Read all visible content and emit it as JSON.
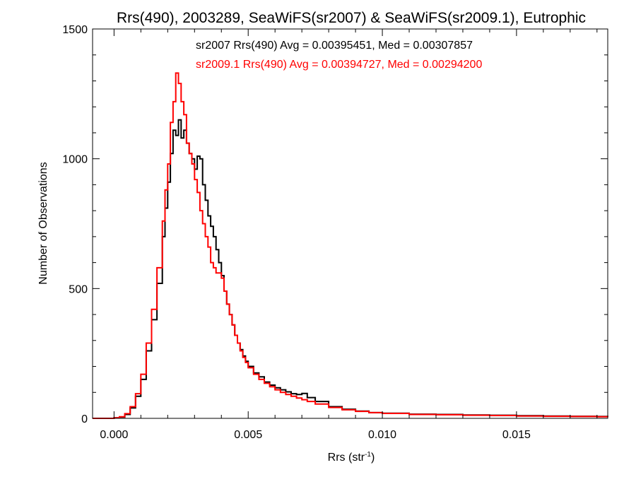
{
  "chart_data": {
    "type": "line",
    "step": true,
    "title": "Rrs(490), 2003289, SeaWiFS(sr2007) & SeaWiFS(sr2009.1), Eutrophic",
    "xlabel": "Rrs (str",
    "xlabel_sup": "-1",
    "xlabel_close": ")",
    "ylabel": "Number of Observations",
    "xlim": [
      -0.0008,
      0.0184
    ],
    "ylim": [
      0,
      1500
    ],
    "xticks": [
      0.0,
      0.005,
      0.01,
      0.015
    ],
    "xtick_labels": [
      "0.000",
      "0.005",
      "0.010",
      "0.015"
    ],
    "yticks": [
      0,
      500,
      1000,
      1500
    ],
    "ytick_labels": [
      "0",
      "500",
      "1000",
      "1500"
    ],
    "grid": false,
    "legend_position": "top",
    "series": [
      {
        "name": "sr2007 Rrs(490) Avg = 0.00395451, Med = 0.00307857",
        "color": "#000000",
        "points": [
          [
            -0.0008,
            0
          ],
          [
            -0.0002,
            0
          ],
          [
            0.0,
            2
          ],
          [
            0.0002,
            5
          ],
          [
            0.0004,
            15
          ],
          [
            0.0006,
            40
          ],
          [
            0.0008,
            85
          ],
          [
            0.001,
            150
          ],
          [
            0.0012,
            260
          ],
          [
            0.0014,
            380
          ],
          [
            0.0016,
            520
          ],
          [
            0.0018,
            700
          ],
          [
            0.0019,
            810
          ],
          [
            0.002,
            910
          ],
          [
            0.0021,
            1020
          ],
          [
            0.0022,
            1110
          ],
          [
            0.0023,
            1090
          ],
          [
            0.0024,
            1150
          ],
          [
            0.0025,
            1080
          ],
          [
            0.0026,
            1110
          ],
          [
            0.0027,
            1060
          ],
          [
            0.0028,
            1020
          ],
          [
            0.0029,
            1000
          ],
          [
            0.003,
            960
          ],
          [
            0.0031,
            1010
          ],
          [
            0.0032,
            1000
          ],
          [
            0.0033,
            900
          ],
          [
            0.0034,
            840
          ],
          [
            0.0035,
            780
          ],
          [
            0.0036,
            740
          ],
          [
            0.0037,
            700
          ],
          [
            0.0038,
            650
          ],
          [
            0.0039,
            600
          ],
          [
            0.004,
            550
          ],
          [
            0.0041,
            490
          ],
          [
            0.0042,
            440
          ],
          [
            0.0043,
            400
          ],
          [
            0.0044,
            360
          ],
          [
            0.0045,
            320
          ],
          [
            0.0046,
            290
          ],
          [
            0.0047,
            265
          ],
          [
            0.0048,
            240
          ],
          [
            0.0049,
            220
          ],
          [
            0.005,
            200
          ],
          [
            0.0052,
            175
          ],
          [
            0.0054,
            160
          ],
          [
            0.0056,
            140
          ],
          [
            0.0058,
            128
          ],
          [
            0.006,
            118
          ],
          [
            0.0062,
            110
          ],
          [
            0.0064,
            102
          ],
          [
            0.0066,
            95
          ],
          [
            0.0068,
            92
          ],
          [
            0.007,
            96
          ],
          [
            0.0072,
            80
          ],
          [
            0.0075,
            65
          ],
          [
            0.008,
            45
          ],
          [
            0.0085,
            35
          ],
          [
            0.009,
            28
          ],
          [
            0.0095,
            22
          ],
          [
            0.01,
            20
          ],
          [
            0.011,
            16
          ],
          [
            0.012,
            15
          ],
          [
            0.013,
            13
          ],
          [
            0.014,
            12
          ],
          [
            0.015,
            10
          ],
          [
            0.016,
            9
          ],
          [
            0.017,
            8
          ],
          [
            0.018,
            7
          ],
          [
            0.0184,
            6
          ]
        ]
      },
      {
        "name": "sr2009.1 Rrs(490) Avg = 0.00394727, Med = 0.00294200",
        "color": "#ff0000",
        "points": [
          [
            -0.0008,
            0
          ],
          [
            -0.0002,
            0
          ],
          [
            0.0,
            2
          ],
          [
            0.0002,
            6
          ],
          [
            0.0004,
            18
          ],
          [
            0.0006,
            45
          ],
          [
            0.0008,
            95
          ],
          [
            0.001,
            170
          ],
          [
            0.0012,
            290
          ],
          [
            0.0014,
            420
          ],
          [
            0.0016,
            580
          ],
          [
            0.0018,
            760
          ],
          [
            0.0019,
            880
          ],
          [
            0.002,
            980
          ],
          [
            0.0021,
            1140
          ],
          [
            0.0022,
            1220
          ],
          [
            0.0023,
            1330
          ],
          [
            0.0024,
            1290
          ],
          [
            0.0025,
            1220
          ],
          [
            0.0026,
            1170
          ],
          [
            0.0027,
            1060
          ],
          [
            0.0028,
            1020
          ],
          [
            0.0029,
            980
          ],
          [
            0.003,
            920
          ],
          [
            0.0031,
            870
          ],
          [
            0.0032,
            800
          ],
          [
            0.0033,
            750
          ],
          [
            0.0034,
            700
          ],
          [
            0.0035,
            660
          ],
          [
            0.0036,
            600
          ],
          [
            0.0037,
            580
          ],
          [
            0.0038,
            560
          ],
          [
            0.0039,
            560
          ],
          [
            0.004,
            540
          ],
          [
            0.0041,
            490
          ],
          [
            0.0042,
            440
          ],
          [
            0.0043,
            400
          ],
          [
            0.0044,
            360
          ],
          [
            0.0045,
            320
          ],
          [
            0.0046,
            290
          ],
          [
            0.0047,
            260
          ],
          [
            0.0048,
            235
          ],
          [
            0.0049,
            215
          ],
          [
            0.005,
            195
          ],
          [
            0.0052,
            170
          ],
          [
            0.0054,
            150
          ],
          [
            0.0056,
            135
          ],
          [
            0.0058,
            122
          ],
          [
            0.006,
            110
          ],
          [
            0.0062,
            100
          ],
          [
            0.0064,
            92
          ],
          [
            0.0066,
            85
          ],
          [
            0.0068,
            78
          ],
          [
            0.007,
            72
          ],
          [
            0.0072,
            65
          ],
          [
            0.0075,
            55
          ],
          [
            0.008,
            42
          ],
          [
            0.0085,
            33
          ],
          [
            0.009,
            27
          ],
          [
            0.0095,
            22
          ],
          [
            0.01,
            19
          ],
          [
            0.011,
            15
          ],
          [
            0.012,
            14
          ],
          [
            0.013,
            12
          ],
          [
            0.014,
            11
          ],
          [
            0.015,
            9
          ],
          [
            0.016,
            8
          ],
          [
            0.017,
            7
          ],
          [
            0.018,
            6
          ],
          [
            0.0184,
            5
          ]
        ]
      }
    ]
  }
}
